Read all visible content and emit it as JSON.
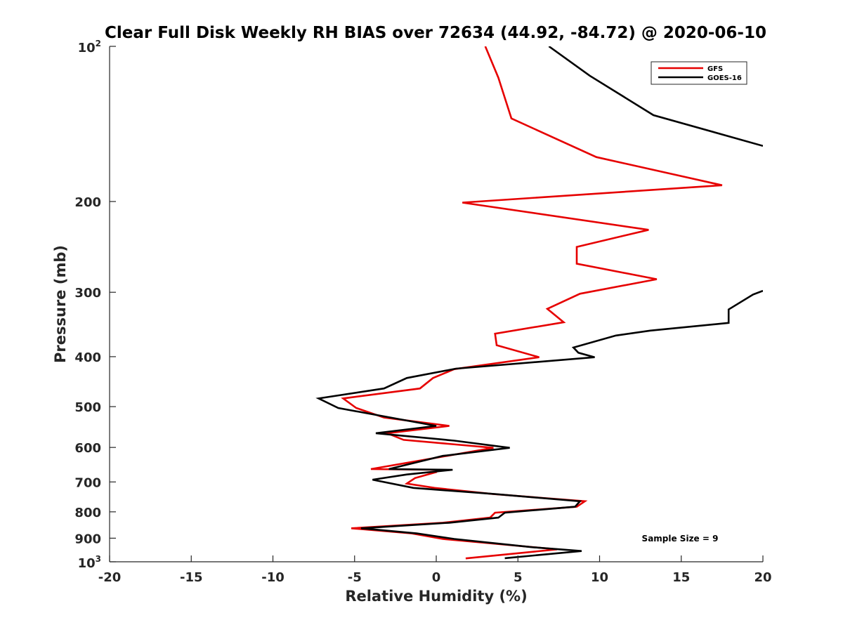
{
  "chart_data": {
    "type": "line",
    "title": "Clear Full Disk Weekly RH BIAS over 72634 (44.92, -84.72) @ 2020-06-10",
    "xlabel": "Relative Humidity (%)",
    "ylabel": "Pressure (mb)",
    "xlim": [
      -20,
      20
    ],
    "ylim": [
      100,
      1000
    ],
    "yscale": "log",
    "y_reversed": true,
    "grid": false,
    "legend_position": "top-right",
    "x_ticks": [
      -20,
      -15,
      -10,
      -5,
      0,
      5,
      10,
      15,
      20
    ],
    "x_tick_labels": [
      "-20",
      "-15",
      "-10",
      "-5",
      "0",
      "5",
      "10",
      "15",
      "20"
    ],
    "y_ticks": [
      {
        "value": 100,
        "base": "10",
        "exp": "2"
      },
      {
        "value": 200,
        "label": "200"
      },
      {
        "value": 300,
        "label": "300"
      },
      {
        "value": 400,
        "label": "400"
      },
      {
        "value": 500,
        "label": "500"
      },
      {
        "value": 600,
        "label": "600"
      },
      {
        "value": 700,
        "label": "700"
      },
      {
        "value": 800,
        "label": "800"
      },
      {
        "value": 900,
        "label": "900"
      },
      {
        "value": 1000,
        "base": "10",
        "exp": "3"
      }
    ],
    "series": [
      {
        "name": "GFS",
        "color": "#e60000",
        "points": [
          [
            3.0,
            100
          ],
          [
            3.8,
            115
          ],
          [
            4.6,
            138
          ],
          [
            9.8,
            164
          ],
          [
            17.5,
            186
          ],
          [
            1.6,
            201
          ],
          [
            13.0,
            227
          ],
          [
            8.6,
            245
          ],
          [
            8.6,
            264
          ],
          [
            13.5,
            283
          ],
          [
            8.8,
            302
          ],
          [
            6.8,
            323
          ],
          [
            7.8,
            343
          ],
          [
            3.6,
            361
          ],
          [
            3.7,
            380
          ],
          [
            6.3,
            401
          ],
          [
            1.1,
            423
          ],
          [
            -0.2,
            440
          ],
          [
            -1.0,
            461
          ],
          [
            -5.7,
            482
          ],
          [
            -4.9,
            503
          ],
          [
            -3.2,
            525
          ],
          [
            0.8,
            545
          ],
          [
            -3.0,
            563
          ],
          [
            -2.0,
            580
          ],
          [
            3.5,
            601
          ],
          [
            -4.0,
            661
          ],
          [
            0.0,
            663
          ],
          [
            0.0,
            670
          ],
          [
            -1.3,
            688
          ],
          [
            -1.8,
            705
          ],
          [
            -0.1,
            719
          ],
          [
            3.5,
            739
          ],
          [
            9.1,
            763
          ],
          [
            8.6,
            782
          ],
          [
            3.6,
            803
          ],
          [
            3.3,
            821
          ],
          [
            0.4,
            840
          ],
          [
            -5.2,
            861
          ],
          [
            -1.5,
            881
          ],
          [
            0.4,
            903
          ],
          [
            7.4,
            946
          ],
          [
            1.8,
            985
          ]
        ]
      },
      {
        "name": "GOES-16",
        "color": "#000000",
        "points": [
          [
            6.9,
            100
          ],
          [
            9.4,
            114
          ],
          [
            13.3,
            136
          ],
          [
            20.0,
            156
          ],
          [
            null,
            null
          ],
          [
            20.0,
            298
          ],
          [
            19.4,
            303
          ],
          [
            17.9,
            324
          ],
          [
            17.9,
            344
          ],
          [
            13.1,
            356
          ],
          [
            11.0,
            364
          ],
          [
            8.4,
            384
          ],
          [
            8.7,
            393
          ],
          [
            9.7,
            401
          ],
          [
            1.2,
            422
          ],
          [
            -1.8,
            440
          ],
          [
            -3.2,
            461
          ],
          [
            -7.2,
            482
          ],
          [
            -6.0,
            503
          ],
          [
            -2.8,
            525
          ],
          [
            0.0,
            545
          ],
          [
            -3.7,
            563
          ],
          [
            1.1,
            582
          ],
          [
            4.5,
            601
          ],
          [
            0.4,
            623
          ],
          [
            -2.9,
            661
          ],
          [
            1.0,
            663
          ],
          [
            -1.8,
            677
          ],
          [
            -3.9,
            693
          ],
          [
            -1.4,
            719
          ],
          [
            3.6,
            739
          ],
          [
            8.8,
            763
          ],
          [
            8.5,
            782
          ],
          [
            4.2,
            803
          ],
          [
            3.8,
            821
          ],
          [
            0.8,
            840
          ],
          [
            -4.6,
            861
          ],
          [
            -1.2,
            881
          ],
          [
            1.1,
            903
          ],
          [
            5.9,
            937
          ],
          [
            8.9,
            953
          ],
          [
            4.2,
            984
          ]
        ]
      }
    ],
    "legend": [
      {
        "name": "GFS",
        "color": "#e60000"
      },
      {
        "name": "GOES-16",
        "color": "#000000"
      }
    ],
    "annotation": "Sample Size = 9"
  }
}
